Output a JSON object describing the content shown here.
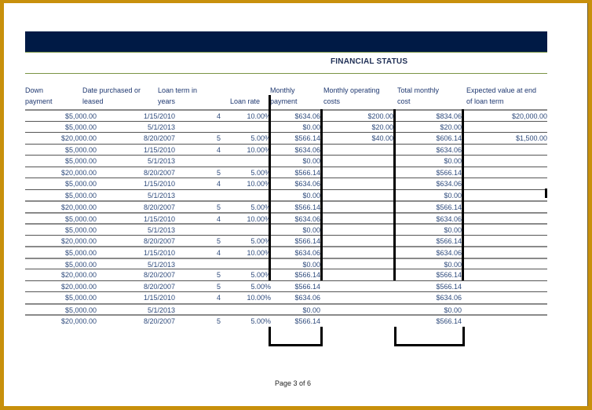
{
  "section_title": "FINANCIAL STATUS",
  "colors": {
    "frame": "#c8900c",
    "header_bar": "#001a45",
    "accent_line": "#7a9445",
    "text": "#2f4b7c"
  },
  "columns": [
    {
      "key": "down_payment",
      "line1": "Down",
      "line2": "payment"
    },
    {
      "key": "date",
      "line1": "Date purchased or",
      "line2": "leased"
    },
    {
      "key": "loan_term",
      "line1": "Loan term in",
      "line2": "years"
    },
    {
      "key": "loan_rate",
      "line1": "",
      "line2": "Loan rate"
    },
    {
      "key": "monthly_payment",
      "line1": "Monthly",
      "line2": "payment"
    },
    {
      "key": "monthly_operating",
      "line1": "Monthly operating",
      "line2": "costs"
    },
    {
      "key": "total_monthly",
      "line1": "Total monthly",
      "line2": "cost"
    },
    {
      "key": "expected_value",
      "line1": "Expected value at end",
      "line2": "of loan term"
    }
  ],
  "rows": [
    {
      "down": "$5,000.00",
      "date": "1/15/2010",
      "term": "4",
      "rate": "10.00%",
      "mpay": "$634.06",
      "mop": "$200.00",
      "tot": "$834.06",
      "exp": "$20,000.00"
    },
    {
      "down": "$5,000.00",
      "date": "5/1/2013",
      "term": "",
      "rate": "",
      "mpay": "$0.00",
      "mop": "$20.00",
      "tot": "$20.00",
      "exp": ""
    },
    {
      "down": "$20,000.00",
      "date": "8/20/2007",
      "term": "5",
      "rate": "5.00%",
      "mpay": "$566.14",
      "mop": "$40.00",
      "tot": "$606.14",
      "exp": "$1,500.00"
    },
    {
      "down": "$5,000.00",
      "date": "1/15/2010",
      "term": "4",
      "rate": "10.00%",
      "mpay": "$634.06",
      "mop": "",
      "tot": "$634.06",
      "exp": ""
    },
    {
      "down": "$5,000.00",
      "date": "5/1/2013",
      "term": "",
      "rate": "",
      "mpay": "$0.00",
      "mop": "",
      "tot": "$0.00",
      "exp": ""
    },
    {
      "down": "$20,000.00",
      "date": "8/20/2007",
      "term": "5",
      "rate": "5.00%",
      "mpay": "$566.14",
      "mop": "",
      "tot": "$566.14",
      "exp": ""
    },
    {
      "down": "$5,000.00",
      "date": "1/15/2010",
      "term": "4",
      "rate": "10.00%",
      "mpay": "$634.06",
      "mop": "",
      "tot": "$634.06",
      "exp": ""
    },
    {
      "down": "$5,000.00",
      "date": "5/1/2013",
      "term": "",
      "rate": "",
      "mpay": "$0.00",
      "mop": "",
      "tot": "$0.00",
      "exp": ""
    },
    {
      "down": "$20,000.00",
      "date": "8/20/2007",
      "term": "5",
      "rate": "5.00%",
      "mpay": "$566.14",
      "mop": "",
      "tot": "$566.14",
      "exp": ""
    },
    {
      "down": "$5,000.00",
      "date": "1/15/2010",
      "term": "4",
      "rate": "10.00%",
      "mpay": "$634.06",
      "mop": "",
      "tot": "$634.06",
      "exp": ""
    },
    {
      "down": "$5,000.00",
      "date": "5/1/2013",
      "term": "",
      "rate": "",
      "mpay": "$0.00",
      "mop": "",
      "tot": "$0.00",
      "exp": ""
    },
    {
      "down": "$20,000.00",
      "date": "8/20/2007",
      "term": "5",
      "rate": "5.00%",
      "mpay": "$566.14",
      "mop": "",
      "tot": "$566.14",
      "exp": ""
    },
    {
      "down": "$5,000.00",
      "date": "1/15/2010",
      "term": "4",
      "rate": "10.00%",
      "mpay": "$634.06",
      "mop": "",
      "tot": "$634.06",
      "exp": ""
    },
    {
      "down": "$5,000.00",
      "date": "5/1/2013",
      "term": "",
      "rate": "",
      "mpay": "$0.00",
      "mop": "",
      "tot": "$0.00",
      "exp": ""
    },
    {
      "down": "$20,000.00",
      "date": "8/20/2007",
      "term": "5",
      "rate": "5.00%",
      "mpay": "$566.14",
      "mop": "",
      "tot": "$566.14",
      "exp": ""
    },
    {
      "down": "$20,000.00",
      "date": "8/20/2007",
      "term": "5",
      "rate": "5.00%",
      "mpay": "$566.14",
      "mop": "",
      "tot": "$566.14",
      "exp": ""
    },
    {
      "down": "$5,000.00",
      "date": "1/15/2010",
      "term": "4",
      "rate": "10.00%",
      "mpay": "$634.06",
      "mop": "",
      "tot": "$634.06",
      "exp": ""
    },
    {
      "down": "$5,000.00",
      "date": "5/1/2013",
      "term": "",
      "rate": "",
      "mpay": "$0.00",
      "mop": "",
      "tot": "$0.00",
      "exp": ""
    },
    {
      "down": "$20,000.00",
      "date": "8/20/2007",
      "term": "5",
      "rate": "5.00%",
      "mpay": "$566.14",
      "mop": "",
      "tot": "$566.14",
      "exp": ""
    }
  ],
  "footer": {
    "page_label": "Page 3 of 6"
  }
}
